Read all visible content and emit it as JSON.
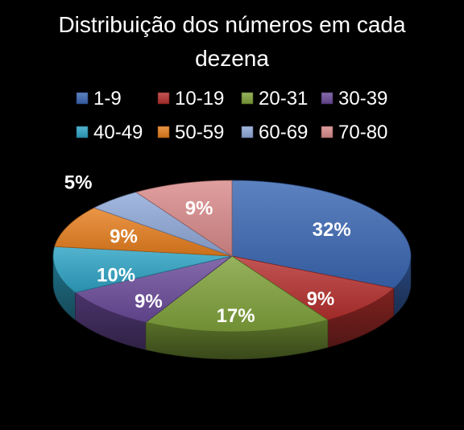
{
  "chart_data": {
    "type": "pie",
    "title_lines": [
      "Distribuição dos números em cada",
      "dezena"
    ],
    "categories": [
      "1-9",
      "10-19",
      "20-31",
      "30-39",
      "40-49",
      "50-59",
      "60-69",
      "70-80"
    ],
    "values": [
      32,
      9,
      17,
      9,
      10,
      9,
      5,
      9
    ],
    "data_labels": [
      "32%",
      "9%",
      "17%",
      "9%",
      "10%",
      "9%",
      "5%",
      "9%"
    ],
    "colors": [
      "#3A66B2",
      "#B5302E",
      "#7FA13A",
      "#6A4A99",
      "#2EA3C4",
      "#E57E1E",
      "#8FA8D8",
      "#D98A8A"
    ],
    "legend_position": "top",
    "style": "3d"
  }
}
